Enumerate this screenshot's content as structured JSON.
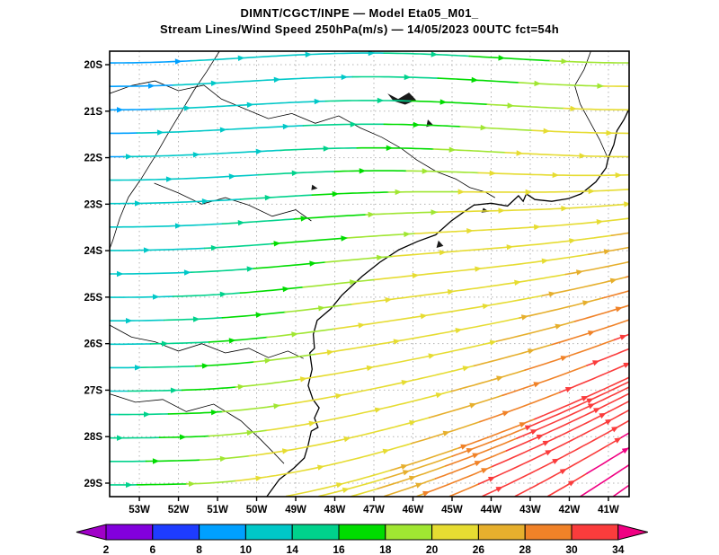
{
  "header": {
    "title_line1": "DIMNT/CGCT/INPE —  Model Eta05_M01_",
    "title_line2": "Stream Lines/Wind Speed 250hPa(m/s) —  14/05/2023 00UTC fct=54h"
  },
  "chart_data": {
    "type": "streamline-map",
    "center": "DIMNT/CGCT/INPE",
    "model": "Eta05_M01_",
    "field": "Stream Lines/Wind Speed",
    "level": "250hPa",
    "units": "m/s",
    "run_datetime": "14/05/2023 00UTC",
    "forecast": "fct=54h",
    "axes": {
      "lat_ticks": [
        "20S",
        "21S",
        "22S",
        "23S",
        "24S",
        "25S",
        "26S",
        "27S",
        "28S",
        "29S"
      ],
      "lon_ticks": [
        "53W",
        "52W",
        "51W",
        "50W",
        "49W",
        "48W",
        "47W",
        "46W",
        "45W",
        "44W",
        "43W",
        "42W",
        "41W"
      ],
      "lat_range_S": [
        19.71,
        29.29
      ],
      "lon_range_W": [
        53.76,
        40.47
      ],
      "grid": "dotted"
    },
    "colorbar": {
      "labels": [
        "2",
        "6",
        "8",
        "10",
        "14",
        "16",
        "18",
        "20",
        "26",
        "28",
        "30",
        "34"
      ],
      "levels": [
        2,
        6,
        8,
        10,
        14,
        16,
        18,
        20,
        26,
        28,
        30,
        34
      ],
      "colors": [
        "#A000C8",
        "#8200DC",
        "#1E3CFF",
        "#00A0FF",
        "#00C8C8",
        "#00D28C",
        "#00DC00",
        "#A0E632",
        "#E6DC32",
        "#E6AF2D",
        "#F08228",
        "#FA3C3C",
        "#F00082"
      ]
    },
    "flow_model": {
      "description": "Westerly upper-level flow; weak (8-14 m/s, blue/cyan) over the northwest, strengthening toward the southeast where a subtropical jet exceeds 34 m/s (magenta) with streamlines curving northeastward",
      "speed": {
        "base": 8,
        "amp": 27,
        "ax": 0.42,
        "ay": 0.26,
        "axy": 0.38
      },
      "arch_amp": 0.06,
      "jet": {
        "k": 1.15,
        "x0": 0.15,
        "y0": 0.25
      },
      "seeds": {
        "left_count": 19,
        "bottom_count": 11,
        "bottom_start": 0.34,
        "bottom_end": 0.97
      }
    },
    "geo": {
      "coast": [
        [
          40.47,
          20.95
        ],
        [
          40.6,
          21.18
        ],
        [
          40.78,
          21.42
        ],
        [
          40.86,
          21.72
        ],
        [
          41.0,
          22.0
        ],
        [
          41.06,
          22.22
        ],
        [
          41.32,
          22.52
        ],
        [
          41.7,
          22.78
        ],
        [
          42.02,
          22.88
        ],
        [
          42.45,
          22.94
        ],
        [
          42.88,
          22.9
        ],
        [
          43.1,
          22.78
        ],
        [
          43.18,
          22.94
        ],
        [
          43.3,
          22.82
        ],
        [
          43.58,
          23.04
        ],
        [
          44.0,
          22.98
        ],
        [
          44.44,
          23.02
        ],
        [
          44.72,
          23.18
        ],
        [
          45.02,
          23.36
        ],
        [
          45.42,
          23.66
        ],
        [
          45.88,
          23.8
        ],
        [
          46.36,
          23.98
        ],
        [
          46.85,
          24.25
        ],
        [
          47.3,
          24.55
        ],
        [
          47.82,
          24.96
        ],
        [
          48.1,
          25.25
        ],
        [
          48.45,
          25.5
        ],
        [
          48.55,
          25.8
        ],
        [
          48.52,
          26.1
        ],
        [
          48.64,
          26.2
        ],
        [
          48.58,
          26.55
        ],
        [
          48.68,
          26.9
        ],
        [
          48.56,
          27.2
        ],
        [
          48.4,
          27.38
        ],
        [
          48.52,
          27.6
        ],
        [
          48.43,
          27.8
        ],
        [
          48.6,
          27.88
        ],
        [
          48.68,
          28.18
        ],
        [
          48.78,
          28.46
        ],
        [
          49.05,
          28.68
        ],
        [
          49.42,
          28.92
        ],
        [
          49.74,
          29.29
        ]
      ],
      "borders": [
        [
          [
            41.45,
            19.71
          ],
          [
            41.62,
            20.1
          ],
          [
            41.86,
            20.45
          ],
          [
            41.72,
            20.85
          ],
          [
            41.48,
            21.22
          ],
          [
            41.22,
            21.62
          ],
          [
            41.02,
            22.0
          ]
        ],
        [
          [
            53.76,
            20.62
          ],
          [
            53.2,
            20.45
          ],
          [
            52.6,
            20.35
          ],
          [
            52.0,
            20.56
          ],
          [
            51.35,
            20.44
          ],
          [
            50.9,
            20.74
          ],
          [
            50.3,
            20.95
          ],
          [
            49.7,
            21.16
          ],
          [
            49.1,
            21.05
          ],
          [
            48.5,
            21.26
          ],
          [
            47.9,
            21.1
          ],
          [
            47.35,
            21.36
          ],
          [
            46.8,
            21.56
          ],
          [
            46.3,
            21.8
          ],
          [
            45.9,
            22.05
          ],
          [
            45.4,
            22.3
          ],
          [
            44.9,
            22.46
          ],
          [
            44.55,
            22.64
          ],
          [
            44.15,
            22.74
          ],
          [
            43.9,
            22.86
          ]
        ],
        [
          [
            50.95,
            19.71
          ],
          [
            51.28,
            20.15
          ],
          [
            51.6,
            20.55
          ],
          [
            51.92,
            21.0
          ],
          [
            52.28,
            21.5
          ],
          [
            52.62,
            22.0
          ],
          [
            52.95,
            22.45
          ],
          [
            53.28,
            22.85
          ],
          [
            53.5,
            23.3
          ],
          [
            53.68,
            23.78
          ],
          [
            53.76,
            23.96
          ]
        ],
        [
          [
            52.62,
            22.55
          ],
          [
            52.0,
            22.76
          ],
          [
            51.4,
            23.0
          ],
          [
            50.8,
            22.86
          ],
          [
            50.2,
            23.02
          ],
          [
            49.6,
            23.26
          ],
          [
            49.0,
            23.12
          ],
          [
            48.6,
            23.36
          ]
        ],
        [
          [
            53.76,
            25.6
          ],
          [
            53.2,
            25.86
          ],
          [
            52.6,
            25.96
          ],
          [
            52.0,
            26.16
          ],
          [
            51.4,
            26.0
          ],
          [
            50.8,
            26.2
          ],
          [
            50.2,
            26.1
          ],
          [
            49.7,
            26.3
          ],
          [
            49.2,
            26.16
          ],
          [
            48.8,
            26.32
          ]
        ],
        [
          [
            53.76,
            27.08
          ],
          [
            53.1,
            27.26
          ],
          [
            52.4,
            27.2
          ],
          [
            51.8,
            27.46
          ],
          [
            51.1,
            27.3
          ],
          [
            50.4,
            27.66
          ],
          [
            49.9,
            28.06
          ],
          [
            49.55,
            28.36
          ],
          [
            49.3,
            28.58
          ]
        ]
      ],
      "lakes": [
        [
          [
            46.65,
            20.62
          ],
          [
            46.38,
            20.74
          ],
          [
            46.1,
            20.6
          ],
          [
            45.92,
            20.76
          ],
          [
            46.2,
            20.86
          ],
          [
            46.5,
            20.78
          ]
        ],
        [
          [
            45.62,
            21.18
          ],
          [
            45.48,
            21.3
          ],
          [
            45.66,
            21.34
          ]
        ],
        [
          [
            48.58,
            22.58
          ],
          [
            48.44,
            22.66
          ],
          [
            48.6,
            22.7
          ]
        ],
        [
          [
            45.35,
            23.78
          ],
          [
            45.22,
            23.9
          ],
          [
            45.4,
            23.94
          ]
        ],
        [
          [
            44.2,
            23.08
          ],
          [
            44.05,
            23.16
          ],
          [
            44.25,
            23.18
          ]
        ]
      ]
    }
  }
}
